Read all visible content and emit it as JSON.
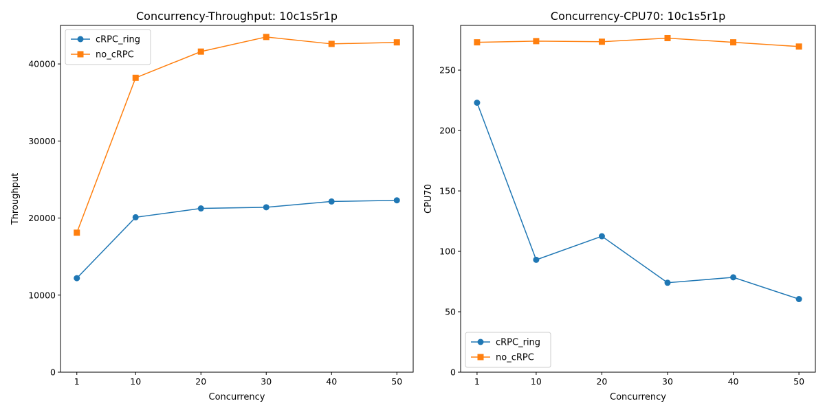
{
  "chart_data": [
    {
      "type": "line",
      "title": "Concurrency-Throughput: 10c1s5r1p",
      "xlabel": "Concurrency",
      "ylabel": "Throughput",
      "x": [
        1,
        10,
        20,
        30,
        40,
        50
      ],
      "x_ticks": [
        "1",
        "10",
        "20",
        "30",
        "40",
        "50"
      ],
      "ylim": [
        0,
        45000
      ],
      "y_ticks": [
        0,
        10000,
        20000,
        30000,
        40000
      ],
      "y_tick_labels": [
        "0",
        "10000",
        "20000",
        "30000",
        "40000"
      ],
      "legend_position": "upper-left",
      "series": [
        {
          "name": "cRPC_ring",
          "color": "#1f77b4",
          "marker": "circle",
          "values": [
            12200,
            20100,
            21250,
            21400,
            22150,
            22300
          ]
        },
        {
          "name": "no_cRPC",
          "color": "#ff7f0e",
          "marker": "square",
          "values": [
            18100,
            38200,
            41600,
            43500,
            42600,
            42800
          ]
        }
      ]
    },
    {
      "type": "line",
      "title": "Concurrency-CPU70: 10c1s5r1p",
      "xlabel": "Concurrency",
      "ylabel": "CPU70",
      "x": [
        1,
        10,
        20,
        30,
        40,
        50
      ],
      "x_ticks": [
        "1",
        "10",
        "20",
        "30",
        "40",
        "50"
      ],
      "ylim": [
        0,
        287
      ],
      "y_ticks": [
        0,
        50,
        100,
        150,
        200,
        250
      ],
      "y_tick_labels": [
        "0",
        "50",
        "100",
        "150",
        "200",
        "250"
      ],
      "legend_position": "lower-left",
      "series": [
        {
          "name": "cRPC_ring",
          "color": "#1f77b4",
          "marker": "circle",
          "values": [
            223,
            93,
            112.5,
            74,
            78.5,
            60.5
          ]
        },
        {
          "name": "no_cRPC",
          "color": "#ff7f0e",
          "marker": "square",
          "values": [
            273,
            274,
            273.5,
            276.5,
            273,
            269.5
          ]
        }
      ]
    }
  ]
}
